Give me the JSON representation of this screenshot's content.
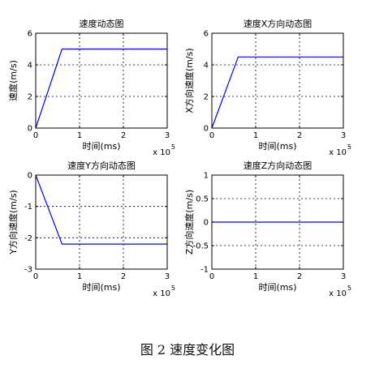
{
  "caption": "图 2  速度变化图",
  "chart_data": [
    {
      "type": "line",
      "title": "速度动态图",
      "xlabel": "时间(ms)",
      "ylabel": "速度(m/s)",
      "xlim": [
        0,
        3
      ],
      "ylim": [
        0,
        6
      ],
      "xticks": [
        0,
        1,
        2,
        3
      ],
      "yticks": [
        0,
        2,
        4,
        6
      ],
      "xtick_labels": [
        "0",
        "1",
        "2",
        "3"
      ],
      "ytick_labels": [
        "0",
        "2",
        "4",
        "6"
      ],
      "x_multiplier": "x 10",
      "x_multiplier_exp": "5",
      "grid": true,
      "line_color": "#0000ff",
      "x": [
        0,
        0.6,
        3
      ],
      "y": [
        0,
        5,
        5
      ]
    },
    {
      "type": "line",
      "title": "速度X方向动态图",
      "xlabel": "时间(ms)",
      "ylabel": "X方向速度(m/s)",
      "xlim": [
        0,
        3
      ],
      "ylim": [
        0,
        6
      ],
      "xticks": [
        0,
        1,
        2,
        3
      ],
      "yticks": [
        0,
        2,
        4,
        6
      ],
      "xtick_labels": [
        "0",
        "1",
        "2",
        "3"
      ],
      "ytick_labels": [
        "0",
        "2",
        "4",
        "6"
      ],
      "x_multiplier": "x 10",
      "x_multiplier_exp": "5",
      "grid": true,
      "line_color": "#0000ff",
      "x": [
        0,
        0.6,
        3
      ],
      "y": [
        0,
        4.5,
        4.5
      ]
    },
    {
      "type": "line",
      "title": "速度Y方向动态图",
      "xlabel": "时间(ms)",
      "ylabel": "Y方向速度(m/s)",
      "xlim": [
        0,
        3
      ],
      "ylim": [
        -3,
        0
      ],
      "xticks": [
        0,
        1,
        2,
        3
      ],
      "yticks": [
        -3,
        -2,
        -1,
        0
      ],
      "xtick_labels": [
        "0",
        "1",
        "2",
        "3"
      ],
      "ytick_labels": [
        "-3",
        "-2",
        "-1",
        "0"
      ],
      "x_multiplier": "x 10",
      "x_multiplier_exp": "5",
      "grid": true,
      "line_color": "#0000ff",
      "x": [
        0,
        0.6,
        3
      ],
      "y": [
        0,
        -2.2,
        -2.2
      ]
    },
    {
      "type": "line",
      "title": "速度Z方向动态图",
      "xlabel": "时间(ms)",
      "ylabel": "Z方向速度(m/s)",
      "xlim": [
        0,
        3
      ],
      "ylim": [
        -1,
        1
      ],
      "xticks": [
        0,
        1,
        2,
        3
      ],
      "yticks": [
        -1,
        -0.5,
        0,
        0.5,
        1
      ],
      "xtick_labels": [
        "0",
        "1",
        "2",
        "3"
      ],
      "ytick_labels": [
        "-1",
        "-0.5",
        "0",
        "0.5",
        "1"
      ],
      "x_multiplier": "x 10",
      "x_multiplier_exp": "5",
      "grid": true,
      "line_color": "#0000ff",
      "x": [
        0,
        3
      ],
      "y": [
        0,
        0
      ]
    }
  ]
}
